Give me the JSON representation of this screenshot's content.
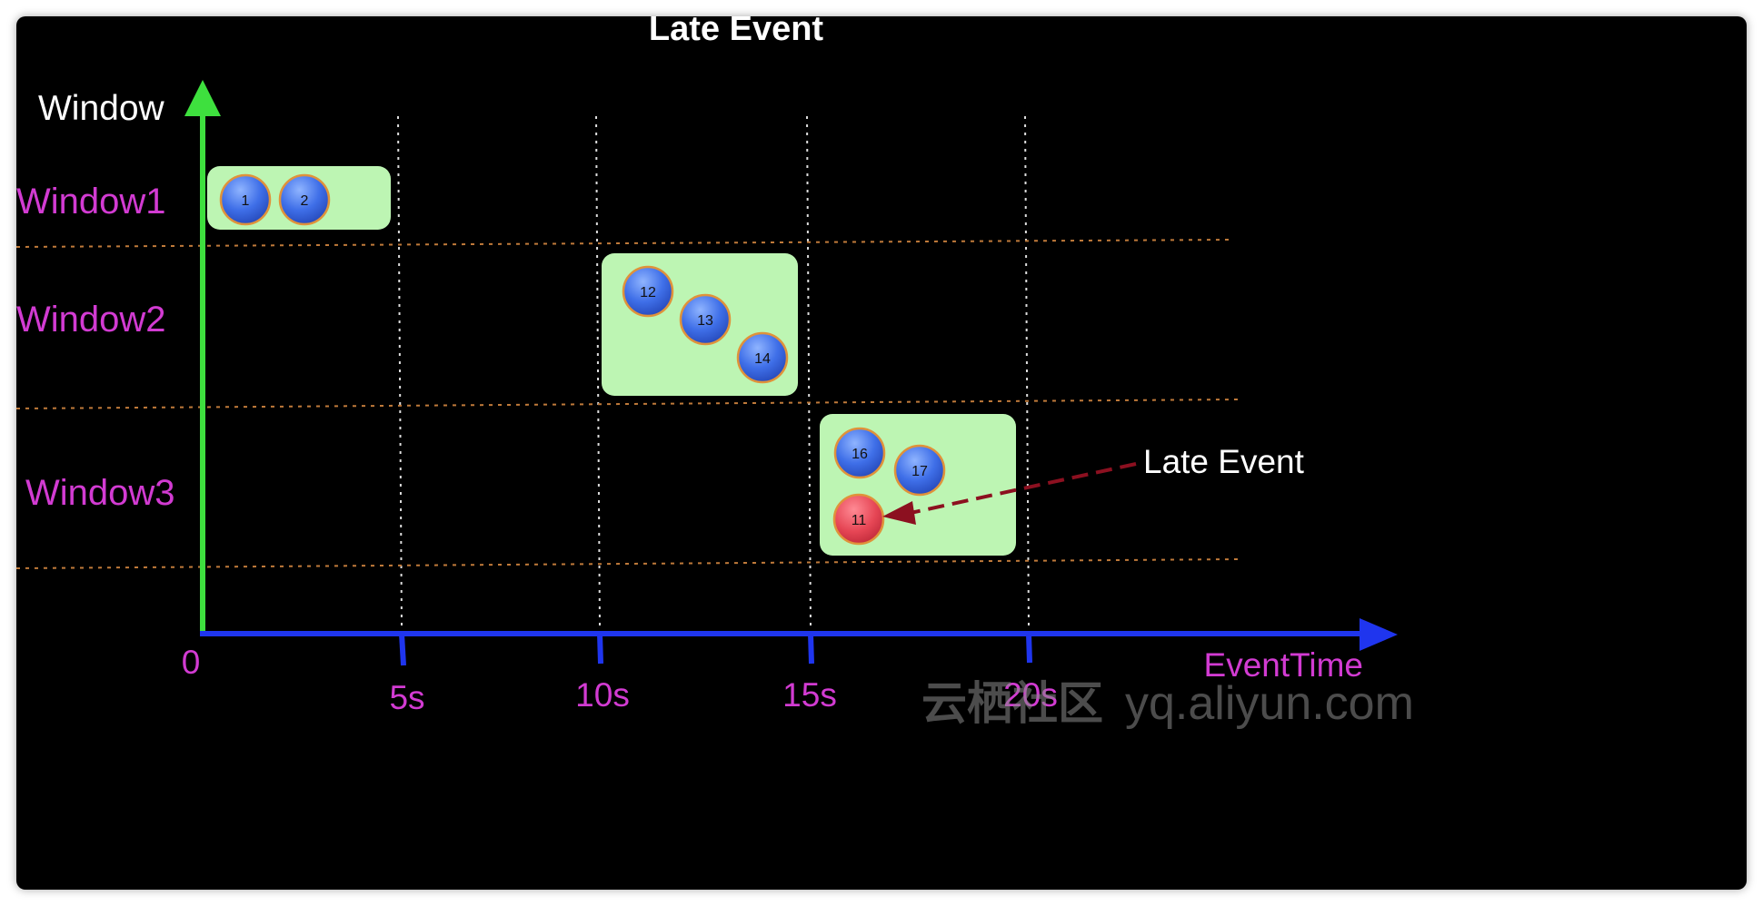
{
  "title": "Late Event",
  "y_axis_title": "Window",
  "x_axis_title": "EventTime",
  "origin_label": "0",
  "windows": [
    {
      "label": "Window1",
      "events": [
        "1",
        "2"
      ]
    },
    {
      "label": "Window2",
      "events": [
        "12",
        "13",
        "14"
      ]
    },
    {
      "label": "Window3",
      "events": [
        "16",
        "17"
      ],
      "late_event": "11"
    }
  ],
  "ticks": [
    "5s",
    "10s",
    "15s",
    "20s"
  ],
  "annotation": "Late Event",
  "watermark": {
    "cjk": "云栖社区",
    "latin": "yq.aliyun.com"
  },
  "colors": {
    "background": "#000000",
    "y_axis": "#3ee03e",
    "x_axis": "#1f35ee",
    "window_label": "#d23bd2",
    "window_box": "#bdf5b3",
    "event_fill": "#3c6fe6",
    "event_stroke": "#e0923a",
    "late_fill": "#e84c5a",
    "arrow": "#8c1020",
    "row_divider": "#c07a3a",
    "time_grid": "#dddddd"
  }
}
